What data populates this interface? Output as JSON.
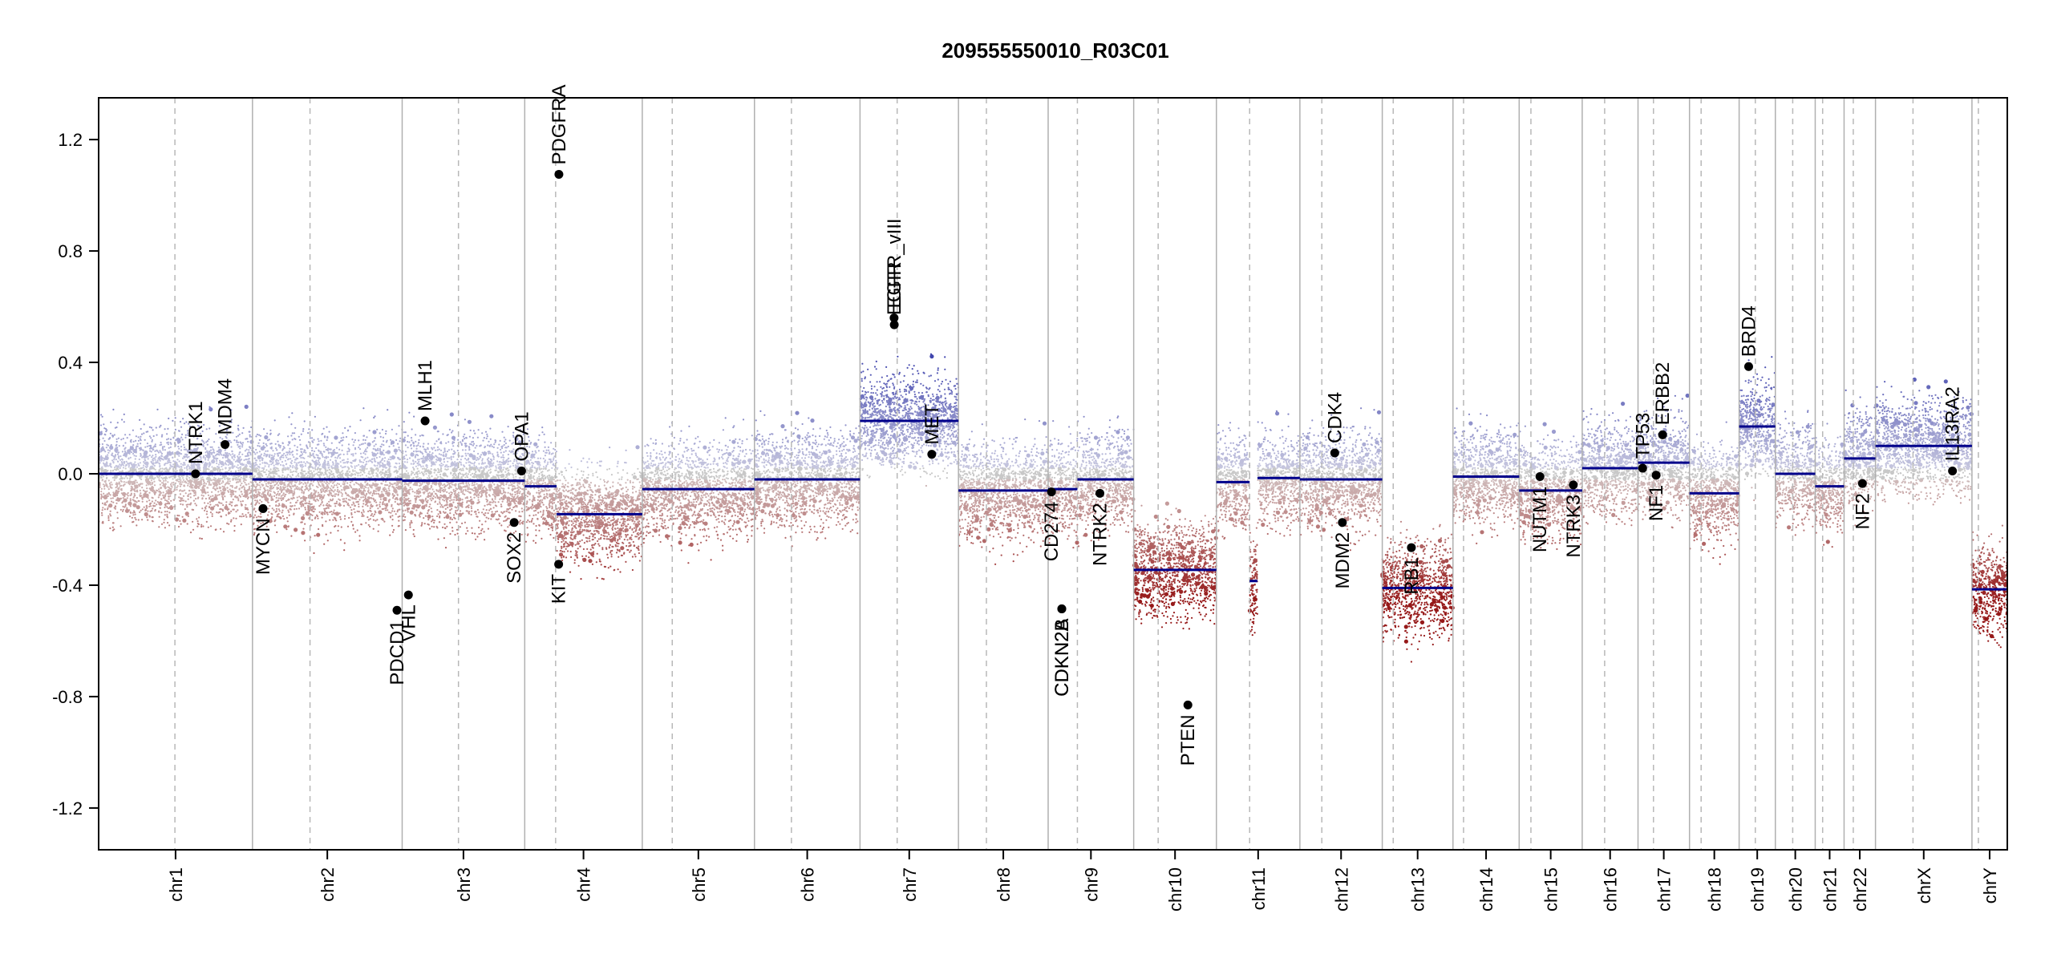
{
  "chart_data": {
    "type": "scatter",
    "title": "209555550010_R03C01",
    "xlabel": "",
    "ylabel": "",
    "ylim": [
      -1.35,
      1.35
    ],
    "y_ticks": [
      -1.2,
      -0.8,
      -0.4,
      0.0,
      0.4,
      0.8,
      1.2
    ],
    "y_tick_labels": [
      "-1.2",
      "-0.8",
      "-0.4",
      "0.0",
      "0.4",
      "0.8",
      "1.2"
    ],
    "grid": false,
    "legend": "none",
    "colors": {
      "segment": "#00008B",
      "gain_points": "#3A3FA8",
      "loss_points": "#9E1A1A",
      "neutral_points": "#BBBBBB",
      "chrom_border": "#B0B0B0",
      "centromere": "#B8B8B8",
      "gene_marker": "#000000"
    },
    "chromosomes": [
      {
        "name": "chr1",
        "start": 0,
        "end": 248.9,
        "centromere": 123.4
      },
      {
        "name": "chr2",
        "start": 248.9,
        "end": 491.1,
        "centromere": 342.0
      },
      {
        "name": "chr3",
        "start": 491.1,
        "end": 689.4,
        "centromere": 582.2
      },
      {
        "name": "chr4",
        "start": 689.4,
        "end": 879.6,
        "centromere": 739.4
      },
      {
        "name": "chr5",
        "start": 879.6,
        "end": 1061.1,
        "centromere": 928.1
      },
      {
        "name": "chr6",
        "start": 1061.1,
        "end": 1231.9,
        "centromere": 1120.9
      },
      {
        "name": "chr7",
        "start": 1231.9,
        "end": 1391.2,
        "centromere": 1292.0
      },
      {
        "name": "chr8",
        "start": 1391.2,
        "end": 1536.3,
        "centromere": 1436.4
      },
      {
        "name": "chr9",
        "start": 1536.3,
        "end": 1674.7,
        "centromere": 1583.6
      },
      {
        "name": "chr10",
        "start": 1674.7,
        "end": 1808.5,
        "centromere": 1714.3
      },
      {
        "name": "chr11",
        "start": 1808.5,
        "end": 1943.6,
        "centromere": 1862.3
      },
      {
        "name": "chr12",
        "start": 1943.6,
        "end": 2076.9,
        "centromere": 1979.1
      },
      {
        "name": "chr13",
        "start": 2076.9,
        "end": 2191.3,
        "centromere": 2094.6
      },
      {
        "name": "chr14",
        "start": 2191.3,
        "end": 2298.4,
        "centromere": 2208.4
      },
      {
        "name": "chr15",
        "start": 2298.4,
        "end": 2400.4,
        "centromere": 2317.4
      },
      {
        "name": "chr16",
        "start": 2400.4,
        "end": 2490.7,
        "centromere": 2436.7
      },
      {
        "name": "chr17",
        "start": 2490.7,
        "end": 2574.0,
        "centromere": 2515.7
      },
      {
        "name": "chr18",
        "start": 2574.0,
        "end": 2654.3,
        "centromere": 2592.8
      },
      {
        "name": "chr19",
        "start": 2654.3,
        "end": 2712.9,
        "centromere": 2680.5
      },
      {
        "name": "chr20",
        "start": 2712.9,
        "end": 2777.4,
        "centromere": 2741.0
      },
      {
        "name": "chr21",
        "start": 2777.4,
        "end": 2824.1,
        "centromere": 2789.4
      },
      {
        "name": "chr22",
        "start": 2824.1,
        "end": 2874.9,
        "centromere": 2839.0
      },
      {
        "name": "chrX",
        "start": 2874.9,
        "end": 3031.0,
        "centromere": 2935.6
      },
      {
        "name": "chrY",
        "start": 3031.0,
        "end": 3088.2,
        "centromere": 3041.4
      }
    ],
    "segments": [
      {
        "x0": 0,
        "x1": 248.9,
        "y": 0.0
      },
      {
        "x0": 248.9,
        "x1": 491.1,
        "y": -0.02
      },
      {
        "x0": 491.1,
        "x1": 689.4,
        "y": -0.025
      },
      {
        "x0": 689.4,
        "x1": 741.0,
        "y": -0.045
      },
      {
        "x0": 741.0,
        "x1": 879.6,
        "y": -0.145
      },
      {
        "x0": 879.6,
        "x1": 1061.1,
        "y": -0.055
      },
      {
        "x0": 1061.1,
        "x1": 1231.9,
        "y": -0.02
      },
      {
        "x0": 1231.9,
        "x1": 1391.2,
        "y": 0.19
      },
      {
        "x0": 1391.2,
        "x1": 1536.3,
        "y": -0.06
      },
      {
        "x0": 1536.3,
        "x1": 1583.6,
        "y": -0.055
      },
      {
        "x0": 1583.6,
        "x1": 1674.7,
        "y": -0.02
      },
      {
        "x0": 1674.7,
        "x1": 1808.5,
        "y": -0.345
      },
      {
        "x0": 1808.5,
        "x1": 1862.3,
        "y": -0.03
      },
      {
        "x0": 1862.3,
        "x1": 1875.0,
        "y": -0.385
      },
      {
        "x0": 1875.0,
        "x1": 1943.6,
        "y": -0.015
      },
      {
        "x0": 1943.6,
        "x1": 2076.9,
        "y": -0.02
      },
      {
        "x0": 2076.9,
        "x1": 2094.6,
        "y": -0.41
      },
      {
        "x0": 2094.6,
        "x1": 2191.3,
        "y": -0.41
      },
      {
        "x0": 2191.3,
        "x1": 2298.4,
        "y": -0.01
      },
      {
        "x0": 2298.4,
        "x1": 2400.4,
        "y": -0.06
      },
      {
        "x0": 2400.4,
        "x1": 2490.7,
        "y": 0.02
      },
      {
        "x0": 2490.7,
        "x1": 2574.0,
        "y": 0.04
      },
      {
        "x0": 2574.0,
        "x1": 2654.3,
        "y": -0.07
      },
      {
        "x0": 2654.3,
        "x1": 2712.9,
        "y": 0.17
      },
      {
        "x0": 2712.9,
        "x1": 2777.4,
        "y": 0.0
      },
      {
        "x0": 2777.4,
        "x1": 2824.1,
        "y": -0.045
      },
      {
        "x0": 2824.1,
        "x1": 2874.9,
        "y": 0.055
      },
      {
        "x0": 2874.9,
        "x1": 3031.0,
        "y": 0.1
      },
      {
        "x0": 3031.0,
        "x1": 3088.2,
        "y": -0.415
      }
    ],
    "genes": [
      {
        "name": "NTRK1",
        "x": 156.8,
        "y": 0.0,
        "label_side": "above"
      },
      {
        "name": "MDM4",
        "x": 204.5,
        "y": 0.105,
        "label_side": "above"
      },
      {
        "name": "MYCN",
        "x": 266.0,
        "y": -0.125,
        "label_side": "below"
      },
      {
        "name": "PDCD1",
        "x": 482.7,
        "y": -0.49,
        "label_side": "below"
      },
      {
        "name": "VHL",
        "x": 501.2,
        "y": -0.435,
        "label_side": "below"
      },
      {
        "name": "MLH1",
        "x": 528.2,
        "y": 0.19,
        "label_side": "above"
      },
      {
        "name": "SOX2",
        "x": 672.3,
        "y": -0.175,
        "label_side": "below"
      },
      {
        "name": "OPA1",
        "x": 684.3,
        "y": 0.01,
        "label_side": "above"
      },
      {
        "name": "KIT",
        "x": 744.3,
        "y": -0.325,
        "label_side": "below"
      },
      {
        "name": "PDGFRA",
        "x": 744.7,
        "y": 1.075,
        "label_side": "above"
      },
      {
        "name": "EGFR_vIII",
        "x": 1287.0,
        "y": 0.56,
        "label_side": "above"
      },
      {
        "name": "EGFR",
        "x": 1287.3,
        "y": 0.535,
        "label_side": "above"
      },
      {
        "name": "MET",
        "x": 1348.0,
        "y": 0.07,
        "label_side": "above"
      },
      {
        "name": "CDKN2A",
        "x": 1558.3,
        "y": -0.485,
        "label_side": "below"
      },
      {
        "name": "CDKN2B",
        "x": 1558.4,
        "y": -0.485,
        "label_side": "below"
      },
      {
        "name": "CD274",
        "x": 1541.8,
        "y": -0.065,
        "label_side": "below"
      },
      {
        "name": "NTRK2",
        "x": 1620.0,
        "y": -0.07,
        "label_side": "below"
      },
      {
        "name": "PTEN",
        "x": 1762.4,
        "y": -0.83,
        "label_side": "below"
      },
      {
        "name": "CDK4",
        "x": 2000.0,
        "y": 0.075,
        "label_side": "above"
      },
      {
        "name": "MDM2",
        "x": 2012.3,
        "y": -0.175,
        "label_side": "below"
      },
      {
        "name": "RB1",
        "x": 2124.0,
        "y": -0.265,
        "label_side": "below"
      },
      {
        "name": "NUTM1",
        "x": 2332.0,
        "y": -0.01,
        "label_side": "below"
      },
      {
        "name": "NTRK3",
        "x": 2386.0,
        "y": -0.04,
        "label_side": "below"
      },
      {
        "name": "TP53",
        "x": 2498.2,
        "y": 0.02,
        "label_side": "above"
      },
      {
        "name": "NF1",
        "x": 2520.0,
        "y": -0.005,
        "label_side": "below"
      },
      {
        "name": "ERBB2",
        "x": 2530.5,
        "y": 0.14,
        "label_side": "above"
      },
      {
        "name": "BRD4",
        "x": 2669.7,
        "y": 0.385,
        "label_side": "above"
      },
      {
        "name": "NF2",
        "x": 2853.8,
        "y": -0.035,
        "label_side": "below"
      },
      {
        "name": "IL13RA2",
        "x": 2999.5,
        "y": 0.01,
        "label_side": "above"
      }
    ]
  }
}
